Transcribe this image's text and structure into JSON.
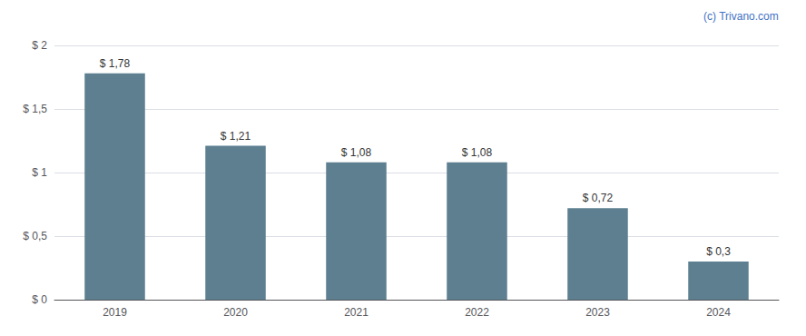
{
  "chart_data": {
    "type": "bar",
    "categories": [
      "2019",
      "2020",
      "2021",
      "2022",
      "2023",
      "2024"
    ],
    "values": [
      1.78,
      1.21,
      1.08,
      1.08,
      0.72,
      0.3
    ],
    "value_labels": [
      "$ 1,78",
      "$ 1,21",
      "$ 1,08",
      "$ 1,08",
      "$ 0,72",
      "$ 0,3"
    ],
    "color": "#5d7f90",
    "ylim": [
      0,
      2.0
    ],
    "yticks": [
      {
        "value": 0,
        "label": "$ 0"
      },
      {
        "value": 0.5,
        "label": "$ 0,5"
      },
      {
        "value": 1.0,
        "label": "$ 1"
      },
      {
        "value": 1.5,
        "label": "$ 1,5"
      },
      {
        "value": 2.0,
        "label": "$ 2"
      }
    ],
    "grid": true,
    "data_labels": true,
    "annotations": [
      "(c) Trivano.com"
    ]
  }
}
